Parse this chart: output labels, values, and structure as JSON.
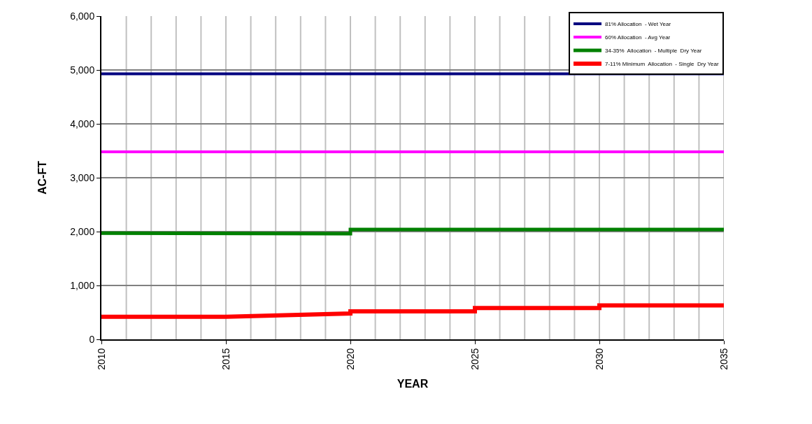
{
  "chart_data": {
    "type": "line",
    "xlabel": "YEAR",
    "ylabel": "AC-FT",
    "xlim": [
      2010,
      2035
    ],
    "xticks": [
      2010,
      2015,
      2020,
      2025,
      2030,
      2035
    ],
    "ylim": [
      0,
      6000
    ],
    "yticks": [
      {
        "value": 0,
        "label": "0"
      },
      {
        "value": 1000,
        "label": "1,000"
      },
      {
        "value": 2000,
        "label": "2,000"
      },
      {
        "value": 3000,
        "label": "3,000"
      },
      {
        "value": 4000,
        "label": "4,000"
      },
      {
        "value": 5000,
        "label": "5,000"
      },
      {
        "value": 6000,
        "label": "6,000"
      }
    ],
    "grid": true,
    "legend": "top right",
    "marker": "none",
    "line_style": "solid",
    "series": [
      {
        "name": "81% Allocation  - Wet Year",
        "color": "#000080",
        "x": [
          2010,
          2035
        ],
        "values": [
          4930,
          4930
        ]
      },
      {
        "name": "60% Allocation  - Avg Year",
        "color": "#ff00ff",
        "x": [
          2010,
          2035
        ],
        "values": [
          3480,
          3480
        ]
      },
      {
        "name": "34-35%  Allocation  - Multiple  Dry Year",
        "color": "#008000",
        "x": [
          2010,
          2020,
          2020,
          2035
        ],
        "values": [
          1970,
          1960,
          2040,
          2040
        ]
      },
      {
        "name": "7-11% Minimum  Allocation  - Single  Dry Year",
        "color": "#ff0000",
        "x": [
          2010,
          2015,
          2020,
          2020,
          2025,
          2025,
          2030,
          2030,
          2035
        ],
        "values": [
          420,
          420,
          480,
          520,
          520,
          580,
          580,
          630,
          630
        ]
      }
    ]
  }
}
